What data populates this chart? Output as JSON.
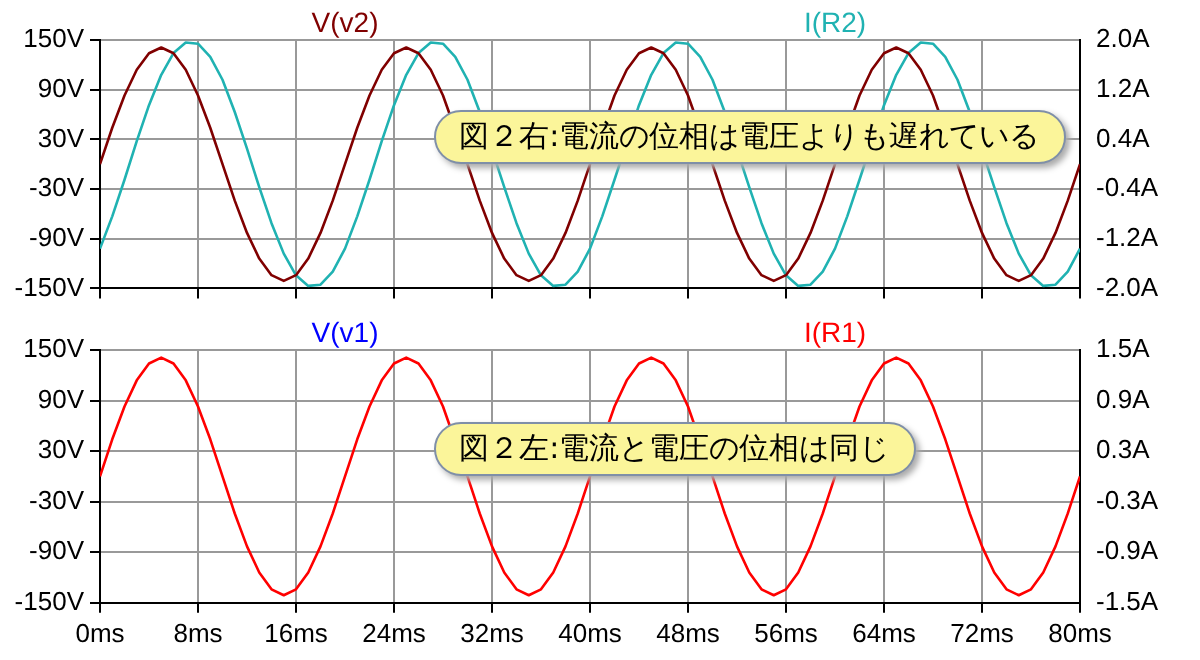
{
  "chart_data": [
    {
      "type": "line",
      "tick_labels": "y",
      "grid": true,
      "legend": "top",
      "marker": "none",
      "line_style": "solid",
      "x": [
        0,
        1,
        2,
        3,
        4,
        5,
        6,
        7,
        8,
        9,
        10,
        11,
        12,
        13,
        14,
        15,
        16,
        17,
        18,
        19,
        20,
        21,
        22,
        23,
        24,
        25,
        26,
        27,
        28,
        29,
        30,
        31,
        32,
        33,
        34,
        35,
        36,
        37,
        38,
        39,
        40,
        41,
        42,
        43,
        44,
        45,
        46,
        47,
        48,
        49,
        50,
        51,
        52,
        53,
        54,
        55,
        56,
        57,
        58,
        59,
        60,
        61,
        62,
        63,
        64,
        65,
        66,
        67,
        68,
        69,
        70,
        71,
        72,
        73,
        74,
        75,
        76,
        77,
        78,
        79,
        80
      ],
      "xlim": [
        0,
        80
      ],
      "xticks": [
        {
          "value": 0,
          "label": null
        },
        {
          "value": 8,
          "label": null
        },
        {
          "value": 16,
          "label": null
        },
        {
          "value": 24,
          "label": null
        },
        {
          "value": 32,
          "label": null
        },
        {
          "value": 40,
          "label": null
        },
        {
          "value": 48,
          "label": null
        },
        {
          "value": 56,
          "label": null
        },
        {
          "value": 64,
          "label": null
        },
        {
          "value": 72,
          "label": null
        },
        {
          "value": 80,
          "label": null
        }
      ],
      "ylim": [
        -150,
        150
      ],
      "yticks": [
        {
          "value": -150,
          "label": "-150V"
        },
        {
          "value": -90,
          "label": "-90V"
        },
        {
          "value": -30,
          "label": "-30V"
        },
        {
          "value": 30,
          "label": "30V"
        },
        {
          "value": 90,
          "label": "90V"
        },
        {
          "value": 150,
          "label": "150V"
        }
      ],
      "y2lim": [
        -2,
        2
      ],
      "y2ticks": [
        {
          "value": -2,
          "label": "-2.0A"
        },
        {
          "value": -1.2,
          "label": "-1.2A"
        },
        {
          "value": -0.4,
          "label": "-0.4A"
        },
        {
          "value": 0.4,
          "label": "0.4A"
        },
        {
          "value": 1.2,
          "label": "1.2A"
        },
        {
          "value": 2,
          "label": "2.0A"
        }
      ],
      "series": [
        {
          "name": "V(v2)",
          "color": "#800000",
          "values": [
            0,
            44,
            83,
            114,
            134,
            141,
            134,
            114,
            83,
            44,
            0,
            -44,
            -83,
            -114,
            -134,
            -141,
            -134,
            -114,
            -83,
            -44,
            0,
            44,
            83,
            114,
            134,
            141,
            134,
            114,
            83,
            null,
            0,
            -44,
            -83,
            -114,
            -134,
            -141,
            -134,
            -114,
            -83,
            -44,
            0,
            null,
            83,
            114,
            134,
            141,
            134,
            114,
            83,
            null,
            0,
            -44,
            -83,
            -114,
            -134,
            -141,
            -134,
            -114,
            -83,
            -44,
            0,
            null,
            83,
            114,
            134,
            141,
            134,
            114,
            83,
            null,
            0,
            -44,
            -83,
            -114,
            -134,
            -141,
            -134,
            -114,
            -83,
            -44,
            0
          ]
        },
        {
          "name": "I(R2)",
          "color": "#20b2b2",
          "axis": "y2",
          "values": [
            -1.36,
            -0.84,
            -0.25,
            0.37,
            0.95,
            1.44,
            1.79,
            1.96,
            1.94,
            1.73,
            1.36,
            0.84,
            0.25,
            -0.37,
            -0.95,
            -1.44,
            -1.79,
            -1.96,
            -1.94,
            -1.73,
            -1.36,
            -0.84,
            -0.25,
            0.37,
            0.95,
            1.44,
            1.79,
            1.96,
            1.94,
            1.73,
            1.36,
            0.84,
            null,
            -0.37,
            -0.95,
            -1.44,
            -1.79,
            -1.96,
            -1.94,
            -1.73,
            -1.36,
            -0.84,
            -0.25,
            null,
            0.95,
            1.44,
            1.79,
            1.96,
            1.94,
            1.73,
            1.36,
            0.84,
            null,
            -0.37,
            -0.95,
            -1.44,
            -1.79,
            -1.96,
            -1.94,
            -1.73,
            -1.36,
            -0.84,
            -0.25,
            null,
            0.95,
            1.44,
            1.79,
            1.96,
            1.94,
            1.73,
            1.36,
            0.84,
            null,
            -0.37,
            -0.95,
            -1.44,
            -1.79,
            -1.96,
            -1.94,
            -1.73,
            -1.36
          ]
        }
      ],
      "annotations": [
        "図２右:電流の位相は電圧よりも遅れている"
      ]
    },
    {
      "type": "line",
      "grid": true,
      "legend": "top",
      "marker": "none",
      "line_style": "solid",
      "x": [
        0,
        1,
        2,
        3,
        4,
        5,
        6,
        7,
        8,
        9,
        10,
        11,
        12,
        13,
        14,
        15,
        16,
        17,
        18,
        19,
        20,
        21,
        22,
        23,
        24,
        25,
        26,
        27,
        28,
        29,
        30,
        31,
        32,
        33,
        34,
        35,
        36,
        37,
        38,
        39,
        40,
        41,
        42,
        43,
        44,
        45,
        46,
        47,
        48,
        49,
        50,
        51,
        52,
        53,
        54,
        55,
        56,
        57,
        58,
        59,
        60,
        61,
        62,
        63,
        64,
        65,
        66,
        67,
        68,
        69,
        70,
        71,
        72,
        73,
        74,
        75,
        76,
        77,
        78,
        79,
        80
      ],
      "xlim": [
        0,
        80
      ],
      "xticks": [
        {
          "value": 0,
          "label": "0ms"
        },
        {
          "value": 8,
          "label": "8ms"
        },
        {
          "value": 16,
          "label": "16ms"
        },
        {
          "value": 24,
          "label": "24ms"
        },
        {
          "value": 32,
          "label": "32ms"
        },
        {
          "value": 40,
          "label": "40ms"
        },
        {
          "value": 48,
          "label": "48ms"
        },
        {
          "value": 56,
          "label": "56ms"
        },
        {
          "value": 64,
          "label": "64ms"
        },
        {
          "value": 72,
          "label": "72ms"
        },
        {
          "value": 80,
          "label": "80ms"
        }
      ],
      "ylim": [
        -150,
        150
      ],
      "yticks": [
        {
          "value": -150,
          "label": "-150V"
        },
        {
          "value": -90,
          "label": "-90V"
        },
        {
          "value": -30,
          "label": "-30V"
        },
        {
          "value": 30,
          "label": "30V"
        },
        {
          "value": 90,
          "label": "90V"
        },
        {
          "value": 150,
          "label": "150V"
        }
      ],
      "y2lim": [
        -1.5,
        1.5
      ],
      "y2ticks": [
        {
          "value": -1.5,
          "label": "-1.5A"
        },
        {
          "value": -0.9,
          "label": "-0.9A"
        },
        {
          "value": -0.3,
          "label": "-0.3A"
        },
        {
          "value": 0.3,
          "label": "0.3A"
        },
        {
          "value": 0.9,
          "label": "0.9A"
        },
        {
          "value": 1.5,
          "label": "1.5A"
        }
      ],
      "series": [
        {
          "name": "V(v1)",
          "color": "#0000ff",
          "values": [
            null,
            null,
            null,
            null,
            null,
            null,
            null,
            null,
            null,
            null,
            null,
            null,
            null,
            null,
            null,
            null,
            null,
            null,
            null,
            null,
            null,
            null,
            null,
            null,
            null,
            null,
            null,
            null,
            null,
            null,
            null,
            null,
            null,
            null,
            null,
            null,
            null,
            null,
            null,
            null,
            null,
            null,
            null,
            null,
            null,
            null,
            null,
            null,
            null,
            null,
            null,
            null,
            null,
            null,
            null,
            null,
            null,
            null,
            null,
            null,
            null,
            null,
            null,
            null,
            null,
            null,
            null,
            null,
            null,
            null,
            null,
            null,
            null,
            null,
            null,
            null,
            null,
            null,
            null,
            null,
            null
          ]
        },
        {
          "name": "I(R1)",
          "color": "#ff0000",
          "axis": "y2",
          "values": [
            0,
            0.44,
            0.83,
            1.14,
            1.34,
            1.41,
            1.34,
            1.14,
            0.83,
            0.44,
            0,
            -0.44,
            -0.83,
            -1.14,
            -1.34,
            -1.41,
            -1.34,
            -1.14,
            -0.83,
            -0.44,
            0,
            0.44,
            0.83,
            1.14,
            1.34,
            1.41,
            1.34,
            1.14,
            0.83,
            null,
            0,
            -0.44,
            -0.83,
            -1.14,
            -1.34,
            -1.41,
            -1.34,
            -1.14,
            -0.83,
            -0.44,
            0,
            null,
            0.83,
            1.14,
            1.34,
            1.41,
            1.34,
            1.14,
            0.83,
            null,
            0,
            -0.44,
            -0.83,
            -1.14,
            -1.34,
            -1.41,
            -1.34,
            -1.14,
            -0.83,
            -0.44,
            0,
            null,
            0.83,
            1.14,
            1.34,
            1.41,
            1.34,
            1.14,
            0.83,
            0.44,
            0,
            -0.44,
            -0.83,
            -1.14,
            -1.34,
            -1.41,
            -1.34,
            -1.14,
            -0.83,
            -0.44,
            0
          ]
        }
      ],
      "annotations": [
        "図２左:電流と電圧の位相は同じ"
      ]
    }
  ]
}
